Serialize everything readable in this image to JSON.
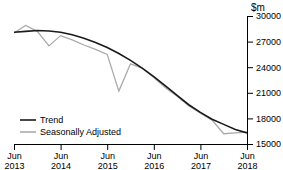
{
  "chart_data": {
    "type": "line",
    "ylabel": "$m",
    "categories": [
      "Jun\n2013",
      null,
      null,
      null,
      "Jun\n2014",
      null,
      null,
      null,
      "Jun\n2015",
      null,
      null,
      null,
      "Jun\n2016",
      null,
      null,
      null,
      "Jun\n2017",
      null,
      null,
      null,
      "Jun\n2018"
    ],
    "series": [
      {
        "name": "Trend",
        "color": "#1a1a1a",
        "values": [
          28100,
          28200,
          28300,
          28250,
          28100,
          27800,
          27400,
          26900,
          26300,
          25600,
          24800,
          23900,
          22900,
          21800,
          20700,
          19600,
          18700,
          17900,
          17300,
          16700,
          16300
        ]
      },
      {
        "name": "Seasonally Adjusted",
        "color": "#aaaaaa",
        "values": [
          28000,
          28900,
          28200,
          26500,
          27700,
          27200,
          26600,
          26100,
          25500,
          21200,
          24400,
          23900,
          22800,
          21600,
          20600,
          19500,
          18600,
          17800,
          16200,
          16300,
          16400
        ]
      }
    ],
    "ylim": [
      15000,
      30000
    ],
    "yticks": [
      15000,
      18000,
      21000,
      24000,
      27000,
      30000
    ],
    "grid": false,
    "legend": "lower left"
  }
}
